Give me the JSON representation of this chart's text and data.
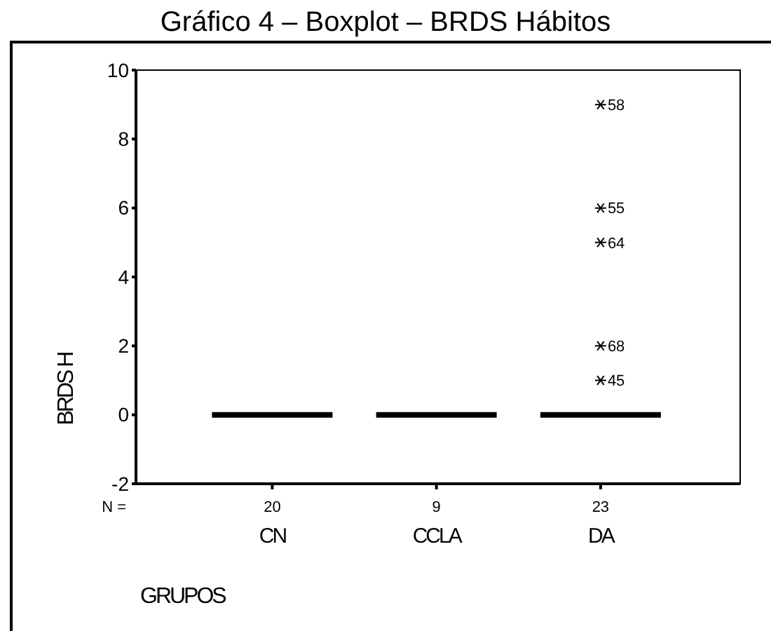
{
  "chart_data": {
    "type": "box",
    "title": "Gráfico 4 – Boxplot – BRDS Hábitos",
    "xlabel": "GRUPOS",
    "ylabel": "BRDS H",
    "categories": [
      "CN",
      "CCLA",
      "DA"
    ],
    "boxes": [
      {
        "low": 0,
        "q1": 0,
        "median": 0,
        "q3": 0,
        "high": 0
      },
      {
        "low": 0,
        "q1": 0,
        "median": 0,
        "q3": 0,
        "high": 0
      },
      {
        "low": 0,
        "q1": 0,
        "median": 0,
        "q3": 0,
        "high": 0,
        "outliers": [
          9,
          6,
          5,
          2,
          1
        ]
      }
    ],
    "ylim": [
      -2,
      10
    ],
    "yticks": [
      -2,
      0,
      2,
      4,
      6,
      8,
      10
    ],
    "grid": false,
    "marker": "cross",
    "annotations": [
      "58",
      "55",
      "64",
      "68",
      "45",
      "N =",
      "20",
      "9",
      "23"
    ]
  }
}
